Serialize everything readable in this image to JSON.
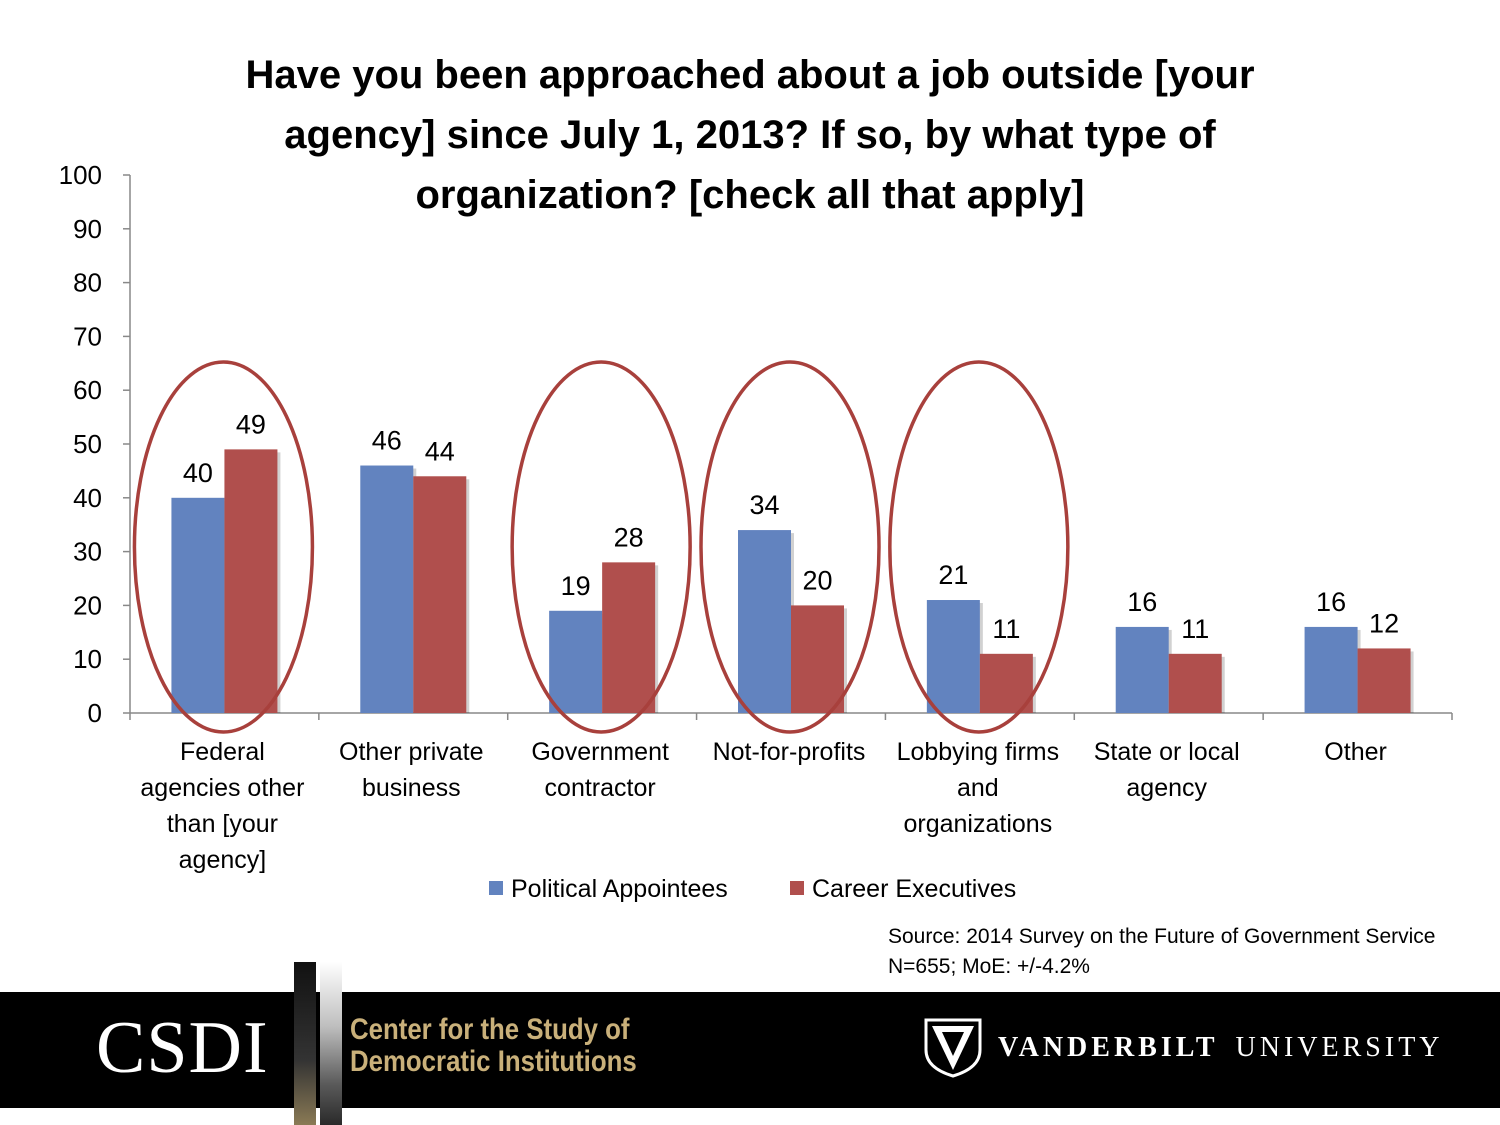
{
  "chart_data": {
    "type": "bar",
    "title_lines": [
      "Have you been approached about a job outside [your",
      "agency] since July 1, 2013? If so, by what type of",
      "organization? [check all that apply]"
    ],
    "categories": [
      [
        "Federal",
        "agencies other",
        "than [your",
        "agency]"
      ],
      [
        "Other private",
        "business"
      ],
      [
        "Government",
        "contractor"
      ],
      [
        "Not-for-profits"
      ],
      [
        "Lobbying firms",
        "and",
        "organizations"
      ],
      [
        "State or local",
        "agency"
      ],
      [
        "Other"
      ]
    ],
    "series": [
      {
        "name": "Political Appointees",
        "color": "#6283bf",
        "values": [
          40,
          46,
          19,
          34,
          21,
          16,
          16
        ]
      },
      {
        "name": "Career Executives",
        "color": "#b04f4d",
        "values": [
          49,
          44,
          28,
          20,
          11,
          11,
          12
        ]
      }
    ],
    "ylim": [
      0,
      100
    ],
    "yticks": [
      "0",
      "10",
      "20",
      "30",
      "40",
      "50",
      "60",
      "70",
      "80",
      "90",
      "100"
    ],
    "highlighted_categories": [
      0,
      2,
      3,
      4
    ],
    "highlight_color": "#a8403c",
    "legend_position": "bottom",
    "grid": false
  },
  "source": {
    "line1": "Source: 2014 Survey on the Future of Government Service",
    "line2": "N=655; MoE: +/-4.2%"
  },
  "footer": {
    "logo_text": "CSDI",
    "center_line1": "Center for the Study of",
    "center_line2": "Democratic Institutions",
    "university_bold": "VANDERBILT",
    "university_light": "UNIVERSITY"
  }
}
